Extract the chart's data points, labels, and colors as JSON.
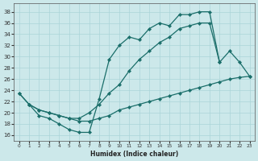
{
  "xlabel": "Humidex (Indice chaleur)",
  "bg_color": "#cce8ea",
  "grid_color": "#aad4d8",
  "line_color": "#1a6e6a",
  "xlim": [
    -0.5,
    23.5
  ],
  "ylim": [
    15,
    39.5
  ],
  "yticks": [
    16,
    18,
    20,
    22,
    24,
    26,
    28,
    30,
    32,
    34,
    36,
    38
  ],
  "xticks": [
    0,
    1,
    2,
    3,
    4,
    5,
    6,
    7,
    8,
    9,
    10,
    11,
    12,
    13,
    14,
    15,
    16,
    17,
    18,
    19,
    20,
    21,
    22,
    23
  ],
  "c1x": [
    0,
    1,
    2,
    3,
    4,
    5,
    6,
    7,
    8,
    9,
    10,
    11,
    12,
    13,
    14,
    15,
    16,
    17,
    18,
    19,
    20
  ],
  "c1y": [
    23.5,
    21.5,
    19.5,
    19.0,
    18.0,
    17.0,
    16.5,
    16.5,
    22.5,
    29.5,
    32.0,
    33.5,
    33.0,
    35.0,
    36.0,
    35.5,
    37.5,
    37.5,
    38.0,
    38.0,
    29.0
  ],
  "c2x": [
    0,
    1,
    2,
    3,
    4,
    5,
    6,
    7,
    8,
    9,
    10,
    11,
    12,
    13,
    14,
    15,
    16,
    17,
    18,
    19,
    20,
    21,
    22,
    23
  ],
  "c2y": [
    23.5,
    21.5,
    20.5,
    20.0,
    19.5,
    19.0,
    19.0,
    20.0,
    21.5,
    23.5,
    25.0,
    27.5,
    29.5,
    31.0,
    32.5,
    33.5,
    35.0,
    35.5,
    36.0,
    36.0,
    29.0,
    31.0,
    29.0,
    26.5
  ],
  "c3x": [
    1,
    2,
    3,
    4,
    5,
    6,
    7,
    8,
    9,
    10,
    11,
    12,
    13,
    14,
    15,
    16,
    17,
    18,
    19,
    20,
    21,
    22,
    23
  ],
  "c3y": [
    21.5,
    20.5,
    20.0,
    19.5,
    19.0,
    18.5,
    18.5,
    19.0,
    19.5,
    20.5,
    21.0,
    21.5,
    22.0,
    22.5,
    23.0,
    23.5,
    24.0,
    24.5,
    25.0,
    25.5,
    26.0,
    26.3,
    26.5
  ]
}
